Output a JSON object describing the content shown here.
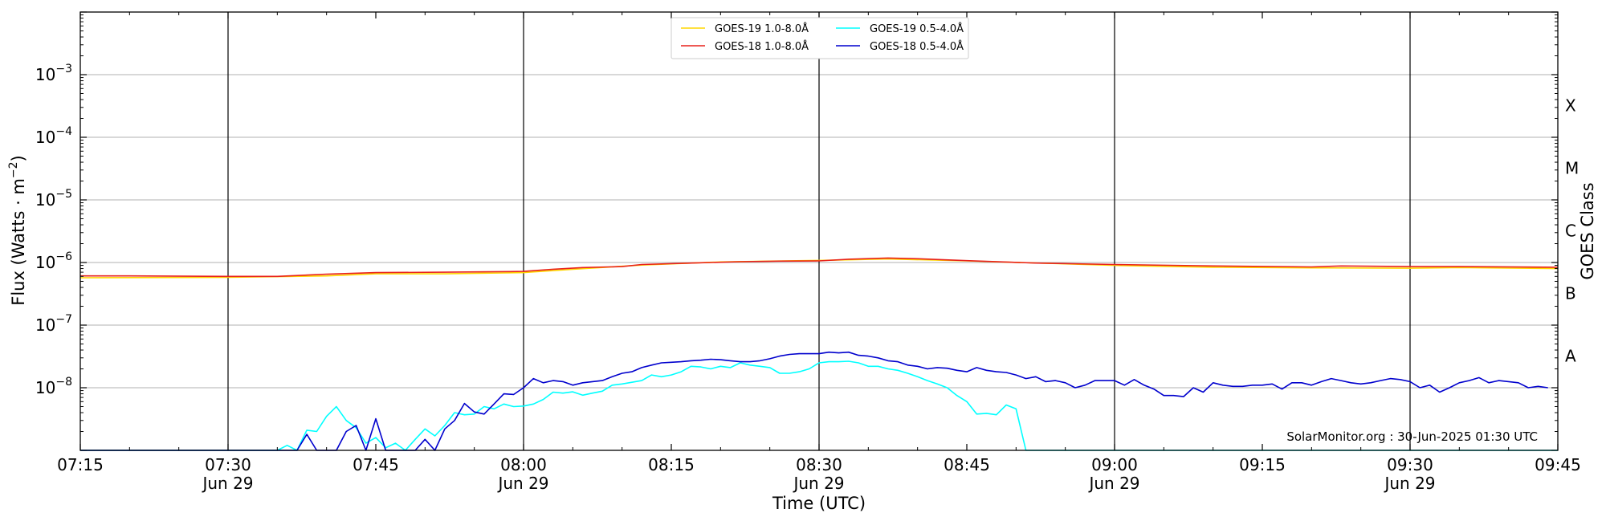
{
  "chart_data": {
    "type": "line",
    "title": "",
    "xlabel": "Time (UTC)",
    "ylabel": "Flux (Watts · m",
    "ylabel_sup": "−2",
    "ylabel_close": ")",
    "y2label": "GOES Class",
    "yscale": "log",
    "xlim": [
      "07:15",
      "09:45"
    ],
    "ylim": [
      1e-09,
      0.01
    ],
    "grid": "horizontal at decades",
    "legend_position": "top-center",
    "credit": "SolarMonitor.org : 30-Jun-2025 01:30 UTC",
    "x_ticks": [
      {
        "time": "07:15",
        "label": "07:15",
        "date": ""
      },
      {
        "time": "07:30",
        "label": "07:30",
        "date": "Jun 29"
      },
      {
        "time": "07:45",
        "label": "07:45",
        "date": ""
      },
      {
        "time": "08:00",
        "label": "08:00",
        "date": "Jun 29"
      },
      {
        "time": "08:15",
        "label": "08:15",
        "date": ""
      },
      {
        "time": "08:30",
        "label": "08:30",
        "date": "Jun 29"
      },
      {
        "time": "08:45",
        "label": "08:45",
        "date": ""
      },
      {
        "time": "09:00",
        "label": "09:00",
        "date": "Jun 29"
      },
      {
        "time": "09:15",
        "label": "09:15",
        "date": ""
      },
      {
        "time": "09:30",
        "label": "09:30",
        "date": "Jun 29"
      },
      {
        "time": "09:45",
        "label": "09:45",
        "date": ""
      }
    ],
    "vertical_lines": [
      "07:30",
      "08:00",
      "08:30",
      "09:00",
      "09:30"
    ],
    "y_ticks": [
      {
        "value": 0.001,
        "base": "10",
        "exp": "−3"
      },
      {
        "value": 0.0001,
        "base": "10",
        "exp": "−4"
      },
      {
        "value": 1e-05,
        "base": "10",
        "exp": "−5"
      },
      {
        "value": 1e-06,
        "base": "10",
        "exp": "−6"
      },
      {
        "value": 1e-07,
        "base": "10",
        "exp": "−7"
      },
      {
        "value": 1e-08,
        "base": "10",
        "exp": "−8"
      }
    ],
    "goes_classes": [
      {
        "label": "X",
        "value": 0.00032
      },
      {
        "label": "M",
        "value": 3.2e-05
      },
      {
        "label": "C",
        "value": 3.2e-06
      },
      {
        "label": "B",
        "value": 3.2e-07
      },
      {
        "label": "A",
        "value": 3.2e-08
      }
    ],
    "series": [
      {
        "name": "GOES-19 1.0-8.0Å",
        "color": "#ffd700",
        "points": [
          [
            "07:15",
            5.7e-07
          ],
          [
            "07:30",
            5.8e-07
          ],
          [
            "07:40",
            6.1e-07
          ],
          [
            "07:45",
            6.6e-07
          ],
          [
            "07:52",
            6.6e-07
          ],
          [
            "08:00",
            6.9e-07
          ],
          [
            "08:05",
            7.8e-07
          ],
          [
            "08:12",
            9.1e-07
          ],
          [
            "08:20",
            1.02e-06
          ],
          [
            "08:25",
            1.05e-06
          ],
          [
            "08:30",
            1.08e-06
          ],
          [
            "08:37",
            1.14e-06
          ],
          [
            "08:45",
            1.06e-06
          ],
          [
            "08:55",
            9.5e-07
          ],
          [
            "09:00",
            9e-07
          ],
          [
            "09:10",
            8.4e-07
          ],
          [
            "09:20",
            8.2e-07
          ],
          [
            "09:30",
            8.1e-07
          ],
          [
            "09:35",
            8.3e-07
          ],
          [
            "09:45",
            8e-07
          ]
        ]
      },
      {
        "name": "GOES-18 1.0-8.0Å",
        "color": "#e8221b",
        "points": [
          [
            "07:15",
            6.1e-07
          ],
          [
            "07:20",
            6.1e-07
          ],
          [
            "07:30",
            6e-07
          ],
          [
            "07:35",
            6e-07
          ],
          [
            "07:40",
            6.5e-07
          ],
          [
            "07:45",
            6.9e-07
          ],
          [
            "07:52",
            7e-07
          ],
          [
            "08:00",
            7.2e-07
          ],
          [
            "08:03",
            7.8e-07
          ],
          [
            "08:06",
            8.3e-07
          ],
          [
            "08:10",
            8.6e-07
          ],
          [
            "08:12",
            9.3e-07
          ],
          [
            "08:17",
            9.8e-07
          ],
          [
            "08:22",
            1.03e-06
          ],
          [
            "08:26",
            1.05e-06
          ],
          [
            "08:30",
            1.06e-06
          ],
          [
            "08:33",
            1.13e-06
          ],
          [
            "08:37",
            1.18e-06
          ],
          [
            "08:40",
            1.15e-06
          ],
          [
            "08:45",
            1.07e-06
          ],
          [
            "08:52",
            9.8e-07
          ],
          [
            "09:00",
            9.3e-07
          ],
          [
            "09:10",
            8.8e-07
          ],
          [
            "09:20",
            8.5e-07
          ],
          [
            "09:23",
            8.8e-07
          ],
          [
            "09:30",
            8.6e-07
          ],
          [
            "09:35",
            8.6e-07
          ],
          [
            "09:45",
            8.4e-07
          ]
        ]
      },
      {
        "name": "GOES-19 0.5-4.0Å",
        "color": "#00ffff",
        "points": [
          [
            "07:15",
            1e-09
          ],
          [
            "07:35",
            1e-09
          ],
          [
            "07:36",
            1.2e-09
          ],
          [
            "07:37",
            1e-09
          ],
          [
            "07:38",
            2.1e-09
          ],
          [
            "07:39",
            2e-09
          ],
          [
            "07:40",
            3.5e-09
          ],
          [
            "07:41",
            5e-09
          ],
          [
            "07:42",
            3e-09
          ],
          [
            "07:43",
            2.3e-09
          ],
          [
            "07:44",
            1.3e-09
          ],
          [
            "07:45",
            1.6e-09
          ],
          [
            "07:46",
            1.1e-09
          ],
          [
            "07:47",
            1.3e-09
          ],
          [
            "07:48",
            1e-09
          ],
          [
            "07:49",
            1.5e-09
          ],
          [
            "07:50",
            2.2e-09
          ],
          [
            "07:51",
            1.7e-09
          ],
          [
            "07:52",
            2.5e-09
          ],
          [
            "07:53",
            4e-09
          ],
          [
            "07:54",
            3.7e-09
          ],
          [
            "07:55",
            3.8e-09
          ],
          [
            "07:56",
            5e-09
          ],
          [
            "07:57",
            4.6e-09
          ],
          [
            "07:58",
            5.5e-09
          ],
          [
            "07:59",
            5e-09
          ],
          [
            "08:00",
            5.1e-09
          ],
          [
            "08:01",
            5.5e-09
          ],
          [
            "08:02",
            6.5e-09
          ],
          [
            "08:03",
            8.5e-09
          ],
          [
            "08:04",
            8.2e-09
          ],
          [
            "08:05",
            8.6e-09
          ],
          [
            "08:06",
            7.6e-09
          ],
          [
            "08:07",
            8.2e-09
          ],
          [
            "08:08",
            8.8e-09
          ],
          [
            "08:09",
            1.1e-08
          ],
          [
            "08:10",
            1.15e-08
          ],
          [
            "08:12",
            1.3e-08
          ],
          [
            "08:13",
            1.6e-08
          ],
          [
            "08:14",
            1.5e-08
          ],
          [
            "08:15",
            1.6e-08
          ],
          [
            "08:16",
            1.8e-08
          ],
          [
            "08:17",
            2.2e-08
          ],
          [
            "08:18",
            2.15e-08
          ],
          [
            "08:19",
            2e-08
          ],
          [
            "08:20",
            2.2e-08
          ],
          [
            "08:21",
            2.1e-08
          ],
          [
            "08:22",
            2.5e-08
          ],
          [
            "08:23",
            2.3e-08
          ],
          [
            "08:24",
            2.2e-08
          ],
          [
            "08:25",
            2.1e-08
          ],
          [
            "08:26",
            1.7e-08
          ],
          [
            "08:27",
            1.7e-08
          ],
          [
            "08:28",
            1.8e-08
          ],
          [
            "08:29",
            2e-08
          ],
          [
            "08:30",
            2.5e-08
          ],
          [
            "08:31",
            2.6e-08
          ],
          [
            "08:32",
            2.6e-08
          ],
          [
            "08:33",
            2.65e-08
          ],
          [
            "08:34",
            2.5e-08
          ],
          [
            "08:35",
            2.2e-08
          ],
          [
            "08:36",
            2.2e-08
          ],
          [
            "08:37",
            2e-08
          ],
          [
            "08:38",
            1.9e-08
          ],
          [
            "08:39",
            1.7e-08
          ],
          [
            "08:40",
            1.5e-08
          ],
          [
            "08:41",
            1.3e-08
          ],
          [
            "08:42",
            1.15e-08
          ],
          [
            "08:43",
            1e-08
          ],
          [
            "08:44",
            7.5e-09
          ],
          [
            "08:45",
            6e-09
          ],
          [
            "08:46",
            3.8e-09
          ],
          [
            "08:47",
            3.9e-09
          ],
          [
            "08:48",
            3.7e-09
          ],
          [
            "08:49",
            5.3e-09
          ],
          [
            "08:50",
            4.6e-09
          ],
          [
            "08:51",
            1e-09
          ],
          [
            "09:45",
            1e-09
          ]
        ]
      },
      {
        "name": "GOES-18 0.5-4.0Å",
        "color": "#0000cd",
        "points": [
          [
            "07:15",
            1e-09
          ],
          [
            "07:37",
            1e-09
          ],
          [
            "07:38",
            1.8e-09
          ],
          [
            "07:39",
            1e-09
          ],
          [
            "07:41",
            1e-09
          ],
          [
            "07:42",
            2e-09
          ],
          [
            "07:43",
            2.5e-09
          ],
          [
            "07:44",
            1e-09
          ],
          [
            "07:45",
            3.2e-09
          ],
          [
            "07:46",
            1e-09
          ],
          [
            "07:49",
            1e-09
          ],
          [
            "07:50",
            1.5e-09
          ],
          [
            "07:51",
            1e-09
          ],
          [
            "07:52",
            2.2e-09
          ],
          [
            "07:53",
            3e-09
          ],
          [
            "07:54",
            5.6e-09
          ],
          [
            "07:55",
            4.1e-09
          ],
          [
            "07:56",
            3.8e-09
          ],
          [
            "07:57",
            5.5e-09
          ],
          [
            "07:58",
            8e-09
          ],
          [
            "07:59",
            7.8e-09
          ],
          [
            "08:00",
            1e-08
          ],
          [
            "08:01",
            1.4e-08
          ],
          [
            "08:02",
            1.2e-08
          ],
          [
            "08:03",
            1.3e-08
          ],
          [
            "08:04",
            1.25e-08
          ],
          [
            "08:05",
            1.1e-08
          ],
          [
            "08:06",
            1.2e-08
          ],
          [
            "08:07",
            1.25e-08
          ],
          [
            "08:08",
            1.3e-08
          ],
          [
            "08:09",
            1.5e-08
          ],
          [
            "08:10",
            1.7e-08
          ],
          [
            "08:11",
            1.8e-08
          ],
          [
            "08:12",
            2.1e-08
          ],
          [
            "08:13",
            2.3e-08
          ],
          [
            "08:14",
            2.5e-08
          ],
          [
            "08:15",
            2.55e-08
          ],
          [
            "08:16",
            2.6e-08
          ],
          [
            "08:17",
            2.7e-08
          ],
          [
            "08:18",
            2.75e-08
          ],
          [
            "08:19",
            2.85e-08
          ],
          [
            "08:20",
            2.8e-08
          ],
          [
            "08:21",
            2.7e-08
          ],
          [
            "08:22",
            2.6e-08
          ],
          [
            "08:23",
            2.6e-08
          ],
          [
            "08:24",
            2.7e-08
          ],
          [
            "08:25",
            2.9e-08
          ],
          [
            "08:26",
            3.2e-08
          ],
          [
            "08:27",
            3.4e-08
          ],
          [
            "08:28",
            3.5e-08
          ],
          [
            "08:29",
            3.5e-08
          ],
          [
            "08:30",
            3.5e-08
          ],
          [
            "08:31",
            3.7e-08
          ],
          [
            "08:32",
            3.6e-08
          ],
          [
            "08:33",
            3.7e-08
          ],
          [
            "08:34",
            3.3e-08
          ],
          [
            "08:35",
            3.2e-08
          ],
          [
            "08:36",
            3e-08
          ],
          [
            "08:37",
            2.7e-08
          ],
          [
            "08:38",
            2.6e-08
          ],
          [
            "08:39",
            2.3e-08
          ],
          [
            "08:40",
            2.2e-08
          ],
          [
            "08:41",
            2e-08
          ],
          [
            "08:42",
            2.1e-08
          ],
          [
            "08:43",
            2.05e-08
          ],
          [
            "08:44",
            1.9e-08
          ],
          [
            "08:45",
            1.8e-08
          ],
          [
            "08:46",
            2.1e-08
          ],
          [
            "08:47",
            1.9e-08
          ],
          [
            "08:48",
            1.8e-08
          ],
          [
            "08:49",
            1.75e-08
          ],
          [
            "08:50",
            1.6e-08
          ],
          [
            "08:51",
            1.4e-08
          ],
          [
            "08:52",
            1.5e-08
          ],
          [
            "08:53",
            1.25e-08
          ],
          [
            "08:54",
            1.3e-08
          ],
          [
            "08:55",
            1.2e-08
          ],
          [
            "08:56",
            1e-08
          ],
          [
            "08:57",
            1.1e-08
          ],
          [
            "08:58",
            1.3e-08
          ],
          [
            "08:59",
            1.3e-08
          ],
          [
            "09:00",
            1.3e-08
          ],
          [
            "09:01",
            1.1e-08
          ],
          [
            "09:02",
            1.35e-08
          ],
          [
            "09:03",
            1.1e-08
          ],
          [
            "09:04",
            9.5e-09
          ],
          [
            "09:05",
            7.5e-09
          ],
          [
            "09:06",
            7.5e-09
          ],
          [
            "09:07",
            7.2e-09
          ],
          [
            "09:08",
            1e-08
          ],
          [
            "09:09",
            8.5e-09
          ],
          [
            "09:10",
            1.2e-08
          ],
          [
            "09:11",
            1.1e-08
          ],
          [
            "09:12",
            1.05e-08
          ],
          [
            "09:13",
            1.05e-08
          ],
          [
            "09:14",
            1.1e-08
          ],
          [
            "09:15",
            1.1e-08
          ],
          [
            "09:16",
            1.15e-08
          ],
          [
            "09:17",
            9.5e-09
          ],
          [
            "09:18",
            1.2e-08
          ],
          [
            "09:19",
            1.2e-08
          ],
          [
            "09:20",
            1.1e-08
          ],
          [
            "09:21",
            1.25e-08
          ],
          [
            "09:22",
            1.4e-08
          ],
          [
            "09:23",
            1.3e-08
          ],
          [
            "09:24",
            1.2e-08
          ],
          [
            "09:25",
            1.15e-08
          ],
          [
            "09:26",
            1.2e-08
          ],
          [
            "09:27",
            1.3e-08
          ],
          [
            "09:28",
            1.4e-08
          ],
          [
            "09:29",
            1.35e-08
          ],
          [
            "09:30",
            1.25e-08
          ],
          [
            "09:31",
            1e-08
          ],
          [
            "09:32",
            1.1e-08
          ],
          [
            "09:33",
            8.5e-09
          ],
          [
            "09:34",
            1e-08
          ],
          [
            "09:35",
            1.2e-08
          ],
          [
            "09:36",
            1.3e-08
          ],
          [
            "09:37",
            1.45e-08
          ],
          [
            "09:38",
            1.2e-08
          ],
          [
            "09:39",
            1.3e-08
          ],
          [
            "09:40",
            1.25e-08
          ],
          [
            "09:41",
            1.2e-08
          ],
          [
            "09:42",
            1e-08
          ],
          [
            "09:43",
            1.05e-08
          ],
          [
            "09:44",
            1e-08
          ]
        ]
      }
    ],
    "legend_order": [
      0,
      2,
      1,
      3
    ]
  }
}
